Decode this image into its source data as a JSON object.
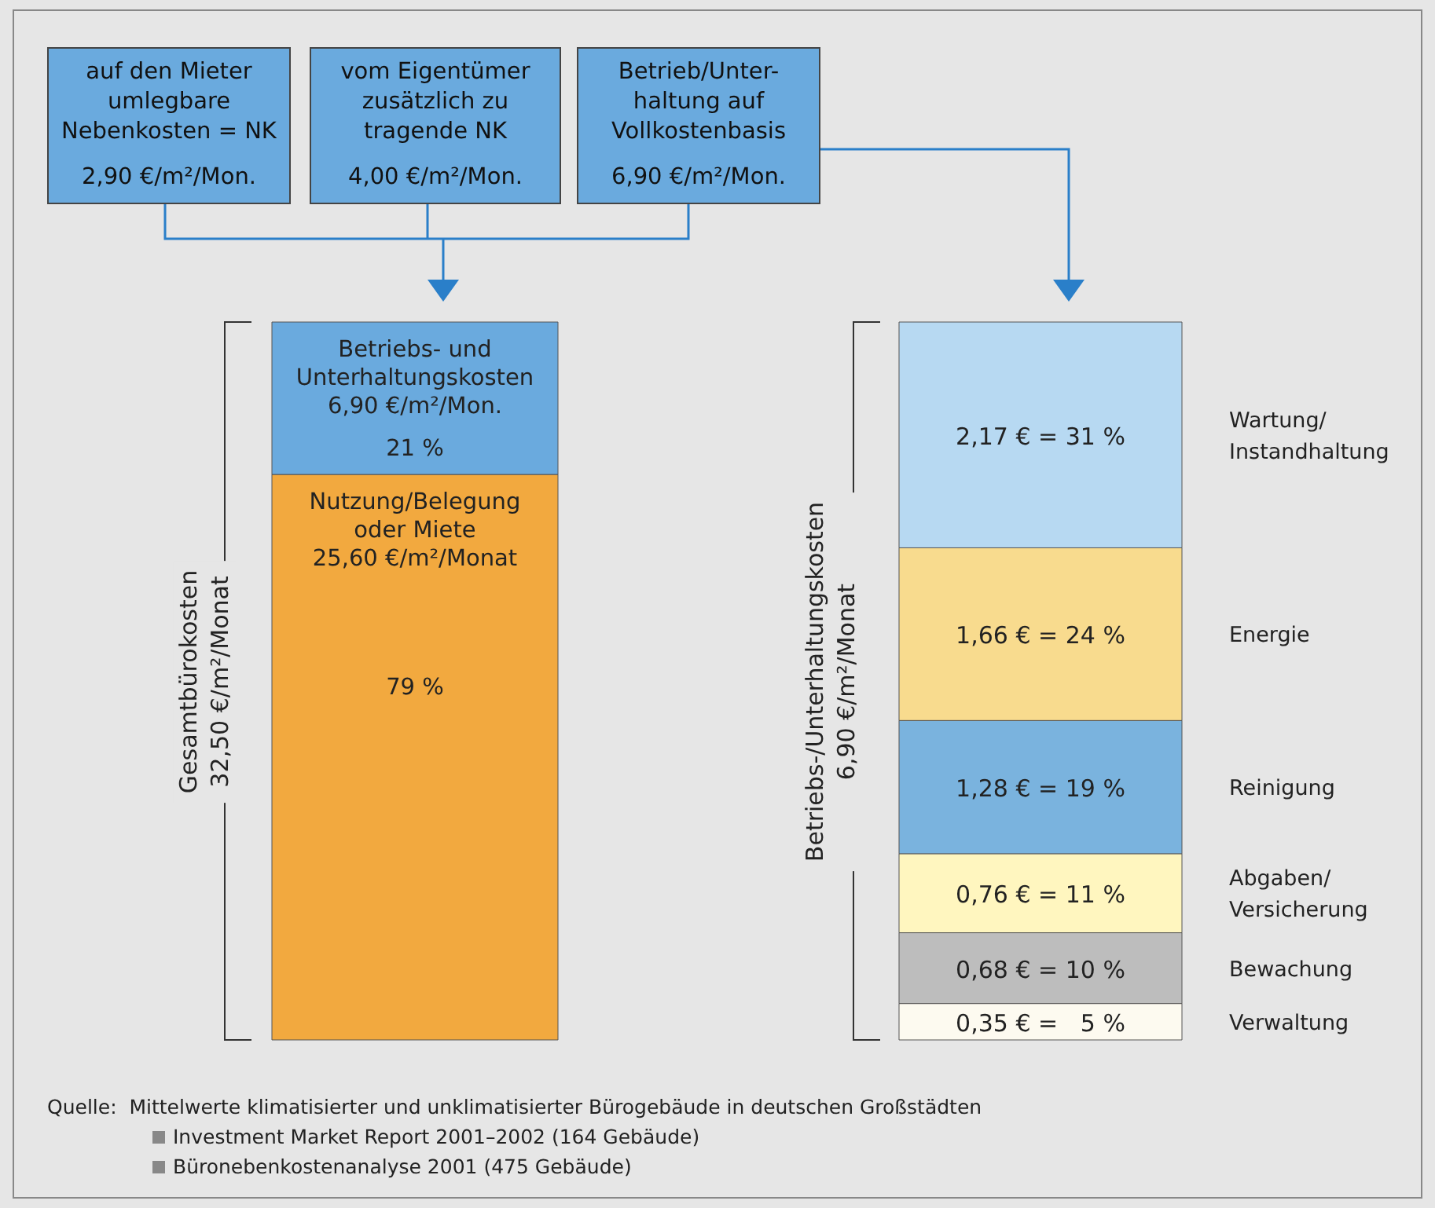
{
  "chart_data": [
    {
      "type": "bar",
      "stacked": true,
      "legend": false,
      "categories": [
        null
      ],
      "ylabel": "Gesamtbürokosten\n32,50 €/m²/Monat",
      "series": [
        {
          "name": "Nutzung/Belegung oder Miete",
          "color": "#f2a93f",
          "values": [
            25.6
          ],
          "value_labels": [
            "25,60 €/m²/Monat"
          ]
        },
        {
          "name": "Betriebs- und Unterhaltungskosten",
          "color": "#6aaade",
          "values": [
            6.9
          ],
          "value_labels": [
            "6,90 €/m²/Mon."
          ]
        }
      ],
      "annotations": [
        "auf den Mieter umlegbare Nebenkosten = NK\n2,90 €/m²/Mon.",
        "vom Eigentümer zusätzlich zu tragende NK\n4,00 €/m²/Mon.",
        "Betrieb/Unter-haltung auf Vollkostenbasis\n6,90 €/m²/Mon.",
        "Quelle:  Mittelwerte klimatisierter und unklimatisierter Bürogebäude in deutschen Großstädten",
        "Investment Market Report 2001–2002 (164 Gebäude)",
        "Büronebenkostenanalyse 2001 (475 Gebäude)",
        "21 %",
        "79 %"
      ]
    },
    {
      "type": "bar",
      "stacked": true,
      "legend": "right",
      "categories": [
        null
      ],
      "ylabel": "Betriebs-/Unterhaltungskosten\n6,90 €/m²/Monat",
      "series": [
        {
          "name": "Verwaltung",
          "color": "#fdfaf0",
          "values": [
            0.35
          ],
          "value_labels": [
            "0,35 € =   5 %"
          ]
        },
        {
          "name": "Bewachung",
          "color": "#bdbdbd",
          "values": [
            0.68
          ],
          "value_labels": [
            "0,68 € = 10 %"
          ]
        },
        {
          "name": "Abgaben/Versicherung",
          "color": "#fff6bf",
          "values": [
            0.76
          ],
          "value_labels": [
            "0,76 € = 11 %"
          ]
        },
        {
          "name": "Reinigung",
          "color": "#7ab3de",
          "values": [
            1.28
          ],
          "value_labels": [
            "1,28 € = 19 %"
          ]
        },
        {
          "name": "Energie",
          "color": "#f8db8e",
          "values": [
            1.66
          ],
          "value_labels": [
            "1,66 € = 24 %"
          ]
        },
        {
          "name": "Wartung/Instandhaltung",
          "color": "#b7d9f2",
          "values": [
            2.17
          ],
          "value_labels": [
            "2,17 € = 31 %"
          ]
        }
      ]
    }
  ]
}
